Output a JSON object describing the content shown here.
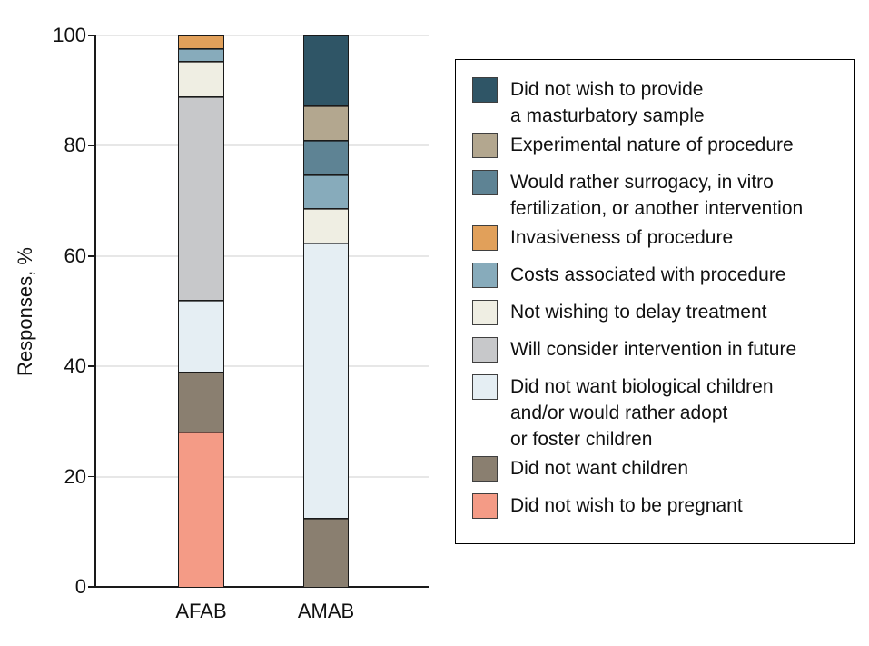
{
  "chart_data": {
    "type": "bar",
    "variant": "stacked-vertical",
    "title": "",
    "xlabel": "",
    "ylabel": "Responses, %",
    "ylim": [
      0,
      100
    ],
    "yticks": [
      0,
      20,
      40,
      60,
      80,
      100
    ],
    "grid": "horizontal-light-gray",
    "legend_position": "right-boxed",
    "categories": [
      "AFAB",
      "AMAB"
    ],
    "series": [
      {
        "name": "Did not wish to provide a masturbatory sample",
        "slug": "masturbatory-sample",
        "color": "#2F5566",
        "legend_lines": [
          "Did not wish to provide",
          "a masturbatory sample"
        ],
        "values": [
          0,
          12.5
        ]
      },
      {
        "name": "Experimental nature of procedure",
        "slug": "experimental-nature",
        "color": "#B3A78F",
        "legend_lines": [
          "Experimental nature of procedure"
        ],
        "values": [
          0,
          6.25
        ]
      },
      {
        "name": "Would rather surrogacy, in vitro fertilization, or another intervention",
        "slug": "surrogacy-ivf-other",
        "color": "#5E8394",
        "legend_lines": [
          "Would rather surrogacy, in vitro",
          "fertilization, or another intervention"
        ],
        "values": [
          0,
          6.25
        ]
      },
      {
        "name": "Invasiveness of procedure",
        "slug": "invasiveness",
        "color": "#E1A05A",
        "legend_lines": [
          "Invasiveness of procedure"
        ],
        "values": [
          2.2,
          0
        ]
      },
      {
        "name": "Costs associated with procedure",
        "slug": "costs",
        "color": "#87ABBB",
        "legend_lines": [
          "Costs associated with procedure"
        ],
        "values": [
          2.2,
          6.25
        ]
      },
      {
        "name": "Not wishing to delay treatment",
        "slug": "delay-treatment",
        "color": "#EFEEE3",
        "legend_lines": [
          "Not wishing to delay treatment"
        ],
        "values": [
          6.5,
          6.25
        ]
      },
      {
        "name": "Will consider intervention in future",
        "slug": "consider-future",
        "color": "#C7C8CA",
        "legend_lines": [
          "Will consider intervention in future"
        ],
        "values": [
          37.0,
          0
        ]
      },
      {
        "name": "Did not want biological children and/or would rather adopt or foster children",
        "slug": "no-biological-children",
        "color": "#E5EEF3",
        "legend_lines": [
          "Did not want biological children",
          "and/or would rather adopt",
          "or foster children"
        ],
        "values": [
          13.0,
          50.0
        ]
      },
      {
        "name": "Did not want children",
        "slug": "no-children",
        "color": "#8A7F70",
        "legend_lines": [
          "Did not want children"
        ],
        "values": [
          10.9,
          12.5
        ]
      },
      {
        "name": "Did not wish to be pregnant",
        "slug": "no-pregnancy",
        "color": "#F49B86",
        "legend_lines": [
          "Did not wish to be pregnant"
        ],
        "values": [
          28.3,
          0
        ]
      }
    ]
  }
}
